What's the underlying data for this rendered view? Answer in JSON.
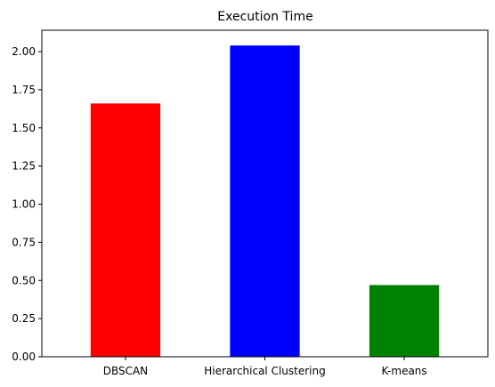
{
  "chart_data": {
    "type": "bar",
    "title": "Execution Time",
    "xlabel": "",
    "ylabel": "",
    "categories": [
      "DBSCAN",
      "Hierarchical Clustering",
      "K-means"
    ],
    "values": [
      1.66,
      2.04,
      0.47
    ],
    "colors": [
      "#ff0000",
      "#0000ff",
      "#008000"
    ],
    "ylim": [
      0,
      2.14
    ],
    "yticks": [
      0.0,
      0.25,
      0.5,
      0.75,
      1.0,
      1.25,
      1.5,
      1.75,
      2.0
    ],
    "ytick_labels": [
      "0.00",
      "0.25",
      "0.50",
      "0.75",
      "1.00",
      "1.25",
      "1.50",
      "1.75",
      "2.00"
    ],
    "grid": false,
    "legend": "none"
  }
}
